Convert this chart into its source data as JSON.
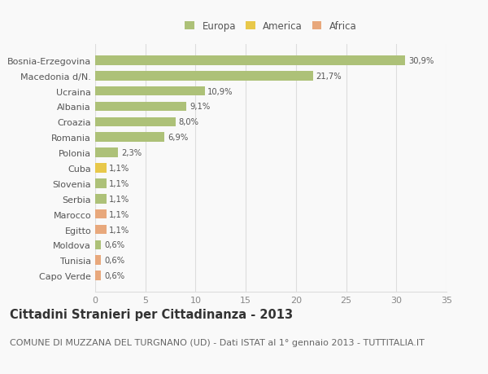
{
  "categories": [
    "Bosnia-Erzegovina",
    "Macedonia d/N.",
    "Ucraina",
    "Albania",
    "Croazia",
    "Romania",
    "Polonia",
    "Cuba",
    "Slovenia",
    "Serbia",
    "Marocco",
    "Egitto",
    "Moldova",
    "Tunisia",
    "Capo Verde"
  ],
  "values": [
    30.9,
    21.7,
    10.9,
    9.1,
    8.0,
    6.9,
    2.3,
    1.1,
    1.1,
    1.1,
    1.1,
    1.1,
    0.6,
    0.6,
    0.6
  ],
  "labels": [
    "30,9%",
    "21,7%",
    "10,9%",
    "9,1%",
    "8,0%",
    "6,9%",
    "2,3%",
    "1,1%",
    "1,1%",
    "1,1%",
    "1,1%",
    "1,1%",
    "0,6%",
    "0,6%",
    "0,6%"
  ],
  "colors": [
    "#adc178",
    "#adc178",
    "#adc178",
    "#adc178",
    "#adc178",
    "#adc178",
    "#adc178",
    "#e8c84a",
    "#adc178",
    "#adc178",
    "#e8a87c",
    "#e8a87c",
    "#adc178",
    "#e8a87c",
    "#e8a87c"
  ],
  "legend_labels": [
    "Europa",
    "America",
    "Africa"
  ],
  "legend_colors": [
    "#adc178",
    "#e8c84a",
    "#e8a87c"
  ],
  "title": "Cittadini Stranieri per Cittadinanza - 2013",
  "subtitle": "COMUNE DI MUZZANA DEL TURGNANO (UD) - Dati ISTAT al 1° gennaio 2013 - TUTTITALIA.IT",
  "xlim": [
    0,
    35
  ],
  "xticks": [
    0,
    5,
    10,
    15,
    20,
    25,
    30,
    35
  ],
  "bg_color": "#f9f9f9",
  "grid_color": "#dddddd",
  "bar_height": 0.62,
  "title_fontsize": 10.5,
  "subtitle_fontsize": 8.0
}
